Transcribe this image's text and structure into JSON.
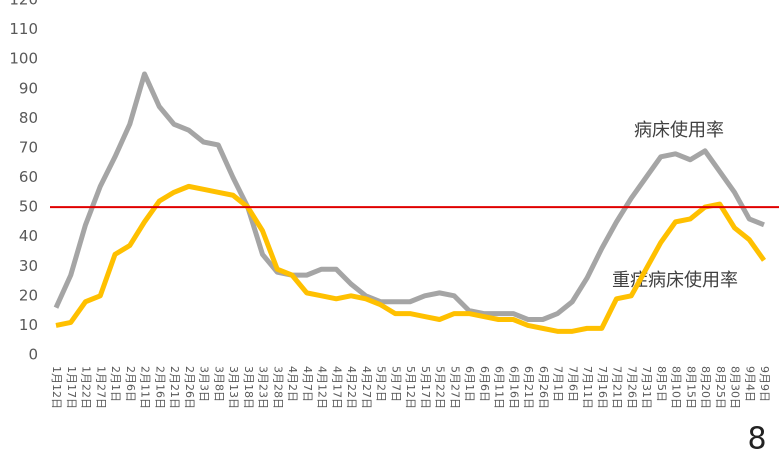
{
  "chart_data": {
    "type": "line",
    "categories": [
      "1月12日",
      "1月17日",
      "1月22日",
      "1月27日",
      "2月1日",
      "2月6日",
      "2月11日",
      "2月16日",
      "2月21日",
      "2月26日",
      "3月3日",
      "3月8日",
      "3月13日",
      "3月18日",
      "3月23日",
      "3月28日",
      "4月2日",
      "4月7日",
      "4月12日",
      "4月17日",
      "4月22日",
      "4月27日",
      "5月2日",
      "5月7日",
      "5月12日",
      "5月17日",
      "5月22日",
      "5月27日",
      "6月1日",
      "6月6日",
      "6月11日",
      "6月16日",
      "6月21日",
      "6月26日",
      "7月1日",
      "7月6日",
      "7月11日",
      "7月16日",
      "7月21日",
      "7月26日",
      "7月31日",
      "8月5日",
      "8月10日",
      "8月15日",
      "8月20日",
      "8月25日",
      "8月30日",
      "9月4日",
      "9月9日"
    ],
    "series": [
      {
        "name": "病床使用率",
        "color": "#a5a5a5",
        "values": [
          16,
          27,
          44,
          57,
          67,
          78,
          95,
          84,
          78,
          76,
          72,
          71,
          60,
          50,
          34,
          28,
          27,
          27,
          29,
          29,
          24,
          20,
          18,
          18,
          18,
          20,
          21,
          20,
          15,
          14,
          14,
          14,
          12,
          12,
          14,
          18,
          26,
          36,
          45,
          53,
          60,
          67,
          68,
          66,
          69,
          62,
          55,
          46,
          44
        ]
      },
      {
        "name": "重症病床使用率",
        "color": "#ffc000",
        "values": [
          10,
          11,
          18,
          20,
          34,
          37,
          45,
          52,
          55,
          57,
          56,
          55,
          54,
          50,
          42,
          29,
          27,
          21,
          20,
          19,
          20,
          19,
          17,
          14,
          14,
          13,
          12,
          14,
          14,
          13,
          12,
          12,
          10,
          9,
          8,
          8,
          9,
          9,
          19,
          20,
          29,
          38,
          45,
          46,
          50,
          51,
          43,
          39,
          32
        ]
      }
    ],
    "ylim": [
      0,
      120
    ],
    "yticks": [
      0,
      10,
      20,
      30,
      40,
      50,
      60,
      70,
      80,
      90,
      100,
      110,
      120
    ],
    "reference_line": {
      "value": 50,
      "color": "#e00000"
    },
    "page_number": "8"
  }
}
